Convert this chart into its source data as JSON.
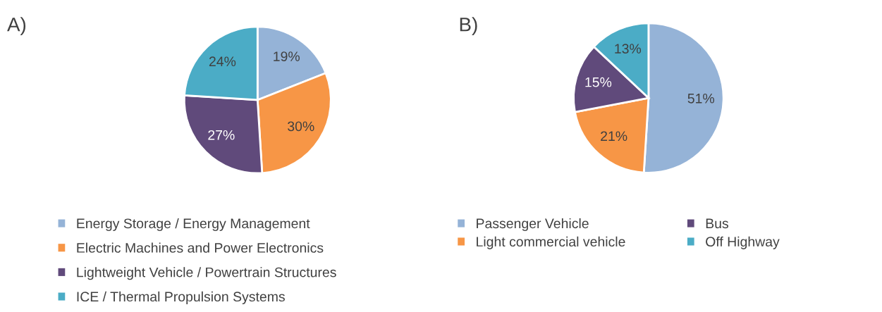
{
  "chart_data": [
    {
      "type": "pie",
      "title": "A)",
      "categories": [
        "Energy Storage / Energy Management",
        "Electric Machines and Power Electronics",
        "Lightweight Vehicle / Powertrain Structures",
        "ICE / Thermal Propulsion Systems"
      ],
      "values": [
        19,
        30,
        27,
        24
      ],
      "value_labels": [
        "19%",
        "30%",
        "27%",
        "24%"
      ],
      "colors": [
        "#95b3d7",
        "#f79646",
        "#604a7b",
        "#4bacc6"
      ],
      "legend": "bottom"
    },
    {
      "type": "pie",
      "title": "B)",
      "categories": [
        "Passenger Vehicle",
        "Light commercial vehicle",
        "Bus",
        "Off Highway"
      ],
      "values": [
        51,
        21,
        15,
        13
      ],
      "value_labels": [
        "51%",
        "21%",
        "15%",
        "13%"
      ],
      "colors": [
        "#95b3d7",
        "#f79646",
        "#604a7b",
        "#4bacc6"
      ],
      "legend": "bottom"
    }
  ]
}
